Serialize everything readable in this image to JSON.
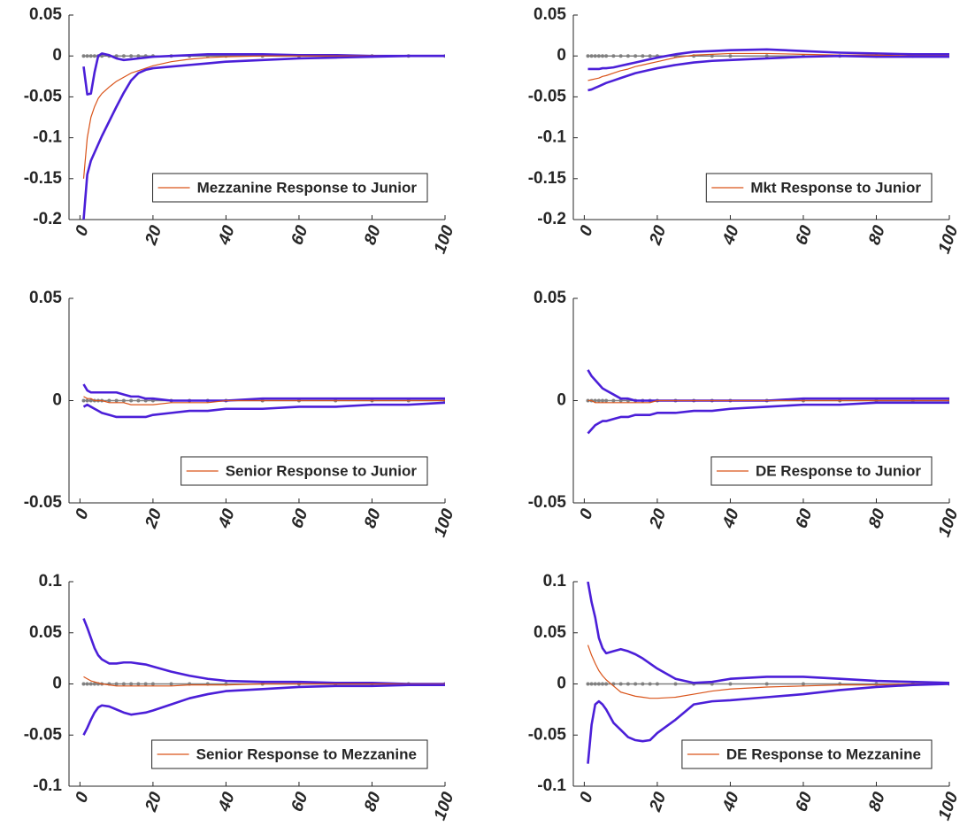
{
  "chart_data": [
    {
      "type": "line",
      "xlim": [
        -3,
        100
      ],
      "xticks": [
        0,
        20,
        40,
        60,
        80,
        100
      ],
      "ylim": [
        -0.2,
        0.05
      ],
      "yticks": [
        -0.2,
        -0.15,
        -0.1,
        -0.05,
        0,
        0.05
      ],
      "legend": "lower right",
      "x": [
        1,
        2,
        3,
        4,
        5,
        6,
        8,
        10,
        12,
        14,
        16,
        18,
        20,
        25,
        30,
        35,
        40,
        50,
        60,
        70,
        80,
        90,
        100
      ],
      "series": [
        {
          "color": "#808080",
          "marker": "dot",
          "values": [
            0,
            0,
            0,
            0,
            0,
            0,
            0,
            0,
            0,
            0,
            0,
            0,
            0,
            0,
            0,
            0,
            0,
            0,
            0,
            0,
            0,
            0,
            0
          ]
        },
        {
          "color": "#4b1fd8",
          "values": [
            -0.013,
            -0.047,
            -0.046,
            -0.02,
            0,
            0.003,
            0.001,
            -0.003,
            -0.005,
            -0.004,
            -0.003,
            -0.002,
            -0.001,
            0,
            0.001,
            0.002,
            0.002,
            0.002,
            0.001,
            0.001,
            0,
            0,
            0
          ]
        },
        {
          "name": "Mezzanine Response to Junior",
          "color": "#d95319",
          "values": [
            -0.15,
            -0.1,
            -0.075,
            -0.062,
            -0.052,
            -0.046,
            -0.038,
            -0.031,
            -0.026,
            -0.021,
            -0.018,
            -0.015,
            -0.012,
            -0.007,
            -0.004,
            -0.002,
            -0.001,
            0,
            0,
            0,
            0,
            0,
            0
          ]
        },
        {
          "color": "#4b1fd8",
          "values": [
            -0.2,
            -0.145,
            -0.128,
            -0.118,
            -0.108,
            -0.098,
            -0.08,
            -0.062,
            -0.045,
            -0.03,
            -0.021,
            -0.017,
            -0.015,
            -0.013,
            -0.011,
            -0.009,
            -0.007,
            -0.005,
            -0.003,
            -0.002,
            -0.001,
            0,
            0
          ]
        }
      ]
    },
    {
      "type": "line",
      "xlim": [
        -3,
        100
      ],
      "xticks": [
        0,
        20,
        40,
        60,
        80,
        100
      ],
      "ylim": [
        -0.2,
        0.05
      ],
      "yticks": [
        -0.2,
        -0.15,
        -0.1,
        -0.05,
        0,
        0.05
      ],
      "legend": "lower right",
      "x": [
        1,
        2,
        3,
        4,
        5,
        6,
        8,
        10,
        12,
        14,
        16,
        18,
        20,
        25,
        30,
        35,
        40,
        50,
        60,
        70,
        80,
        90,
        100
      ],
      "series": [
        {
          "color": "#808080",
          "marker": "dot",
          "values": [
            0,
            0,
            0,
            0,
            0,
            0,
            0,
            0,
            0,
            0,
            0,
            0,
            0,
            0,
            0,
            0,
            0,
            0,
            0,
            0,
            0,
            0,
            0
          ]
        },
        {
          "color": "#4b1fd8",
          "values": [
            -0.016,
            -0.016,
            -0.016,
            -0.016,
            -0.015,
            -0.015,
            -0.014,
            -0.012,
            -0.01,
            -0.008,
            -0.006,
            -0.004,
            -0.002,
            0.002,
            0.005,
            0.006,
            0.007,
            0.008,
            0.006,
            0.004,
            0.003,
            0.002,
            0.002
          ]
        },
        {
          "name": "Mkt Response to Junior",
          "color": "#d95319",
          "values": [
            -0.03,
            -0.029,
            -0.028,
            -0.027,
            -0.025,
            -0.024,
            -0.021,
            -0.018,
            -0.016,
            -0.013,
            -0.011,
            -0.009,
            -0.007,
            -0.002,
            0.001,
            0.002,
            0.003,
            0.003,
            0.002,
            0.001,
            0.001,
            0,
            0
          ]
        },
        {
          "color": "#4b1fd8",
          "values": [
            -0.042,
            -0.041,
            -0.039,
            -0.037,
            -0.035,
            -0.033,
            -0.03,
            -0.027,
            -0.024,
            -0.021,
            -0.019,
            -0.017,
            -0.015,
            -0.011,
            -0.008,
            -0.006,
            -0.005,
            -0.003,
            -0.001,
            0,
            -0.001,
            -0.001,
            -0.001
          ]
        }
      ]
    },
    {
      "type": "line",
      "xlim": [
        -3,
        100
      ],
      "xticks": [
        0,
        20,
        40,
        60,
        80,
        100
      ],
      "ylim": [
        -0.05,
        0.05
      ],
      "yticks": [
        -0.05,
        0,
        0.05
      ],
      "legend": "lower right",
      "x": [
        1,
        2,
        3,
        4,
        5,
        6,
        8,
        10,
        12,
        14,
        16,
        18,
        20,
        25,
        30,
        35,
        40,
        50,
        60,
        70,
        80,
        90,
        100
      ],
      "series": [
        {
          "color": "#808080",
          "marker": "dot",
          "values": [
            0,
            0,
            0,
            0,
            0,
            0,
            0,
            0,
            0,
            0,
            0,
            0,
            0,
            0,
            0,
            0,
            0,
            0,
            0,
            0,
            0,
            0,
            0
          ]
        },
        {
          "color": "#4b1fd8",
          "values": [
            0.008,
            0.005,
            0.004,
            0.004,
            0.004,
            0.004,
            0.004,
            0.004,
            0.003,
            0.002,
            0.002,
            0.001,
            0.001,
            0,
            0,
            0,
            0,
            0.001,
            0.001,
            0.001,
            0.001,
            0.001,
            0.001
          ]
        },
        {
          "name": "Senior Response to Junior",
          "color": "#d95319",
          "values": [
            0.002,
            0.001,
            0.001,
            0,
            0,
            0,
            -0.001,
            -0.001,
            -0.001,
            -0.002,
            -0.002,
            -0.002,
            -0.002,
            -0.001,
            -0.001,
            -0.001,
            0,
            0,
            0,
            0,
            0,
            0,
            0
          ]
        },
        {
          "color": "#4b1fd8",
          "values": [
            -0.003,
            -0.002,
            -0.003,
            -0.004,
            -0.005,
            -0.006,
            -0.007,
            -0.008,
            -0.008,
            -0.008,
            -0.008,
            -0.008,
            -0.007,
            -0.006,
            -0.005,
            -0.005,
            -0.004,
            -0.004,
            -0.003,
            -0.003,
            -0.002,
            -0.002,
            -0.001
          ]
        }
      ]
    },
    {
      "type": "line",
      "xlim": [
        -3,
        100
      ],
      "xticks": [
        0,
        20,
        40,
        60,
        80,
        100
      ],
      "ylim": [
        -0.05,
        0.05
      ],
      "yticks": [
        -0.05,
        0,
        0.05
      ],
      "legend": "lower right",
      "x": [
        1,
        2,
        3,
        4,
        5,
        6,
        8,
        10,
        12,
        14,
        16,
        18,
        20,
        25,
        30,
        35,
        40,
        50,
        60,
        70,
        80,
        90,
        100
      ],
      "series": [
        {
          "color": "#808080",
          "marker": "dot",
          "values": [
            0,
            0,
            0,
            0,
            0,
            0,
            0,
            0,
            0,
            0,
            0,
            0,
            0,
            0,
            0,
            0,
            0,
            0,
            0,
            0,
            0,
            0,
            0
          ]
        },
        {
          "color": "#4b1fd8",
          "values": [
            0.015,
            0.012,
            0.01,
            0.008,
            0.006,
            0.005,
            0.003,
            0.001,
            0.001,
            0,
            0,
            0,
            0,
            0,
            0,
            0,
            0,
            0,
            0.001,
            0.001,
            0.001,
            0.001,
            0.001
          ]
        },
        {
          "name": "DE Response to Junior",
          "color": "#d95319",
          "values": [
            0,
            0,
            -0.001,
            -0.001,
            -0.001,
            -0.001,
            -0.001,
            -0.001,
            -0.001,
            -0.001,
            -0.001,
            -0.001,
            0,
            0,
            0,
            0,
            0,
            0,
            0,
            0,
            0,
            0,
            0
          ]
        },
        {
          "color": "#4b1fd8",
          "values": [
            -0.016,
            -0.014,
            -0.012,
            -0.011,
            -0.01,
            -0.01,
            -0.009,
            -0.008,
            -0.008,
            -0.007,
            -0.007,
            -0.007,
            -0.006,
            -0.006,
            -0.005,
            -0.005,
            -0.004,
            -0.003,
            -0.002,
            -0.002,
            -0.001,
            -0.001,
            -0.001
          ]
        }
      ]
    },
    {
      "type": "line",
      "xlim": [
        -3,
        100
      ],
      "xticks": [
        0,
        20,
        40,
        60,
        80,
        100
      ],
      "ylim": [
        -0.1,
        0.1
      ],
      "yticks": [
        -0.1,
        -0.05,
        0,
        0.05,
        0.1
      ],
      "legend": "lower right",
      "x": [
        1,
        2,
        3,
        4,
        5,
        6,
        8,
        10,
        12,
        14,
        16,
        18,
        20,
        25,
        30,
        35,
        40,
        50,
        60,
        70,
        80,
        90,
        100
      ],
      "series": [
        {
          "color": "#808080",
          "marker": "dot",
          "values": [
            0,
            0,
            0,
            0,
            0,
            0,
            0,
            0,
            0,
            0,
            0,
            0,
            0,
            0,
            0,
            0,
            0,
            0,
            0,
            0,
            0,
            0,
            0
          ]
        },
        {
          "color": "#4b1fd8",
          "values": [
            0.064,
            0.055,
            0.045,
            0.035,
            0.028,
            0.024,
            0.02,
            0.02,
            0.021,
            0.021,
            0.02,
            0.019,
            0.017,
            0.012,
            0.008,
            0.005,
            0.003,
            0.002,
            0.002,
            0.001,
            0.001,
            0,
            0
          ]
        },
        {
          "name": "Senior Response to Mezzanine",
          "color": "#d95319",
          "values": [
            0.007,
            0.005,
            0.003,
            0.002,
            0.001,
            0,
            -0.001,
            -0.002,
            -0.002,
            -0.002,
            -0.002,
            -0.002,
            -0.002,
            -0.002,
            -0.001,
            -0.001,
            -0.001,
            0,
            0,
            0,
            0,
            0,
            0
          ]
        },
        {
          "color": "#4b1fd8",
          "values": [
            -0.05,
            -0.043,
            -0.035,
            -0.028,
            -0.023,
            -0.021,
            -0.022,
            -0.025,
            -0.028,
            -0.03,
            -0.029,
            -0.028,
            -0.026,
            -0.02,
            -0.014,
            -0.01,
            -0.007,
            -0.005,
            -0.003,
            -0.002,
            -0.002,
            -0.001,
            -0.001
          ]
        }
      ]
    },
    {
      "type": "line",
      "xlim": [
        -3,
        100
      ],
      "xticks": [
        0,
        20,
        40,
        60,
        80,
        100
      ],
      "ylim": [
        -0.1,
        0.1
      ],
      "yticks": [
        -0.1,
        -0.05,
        0,
        0.05,
        0.1
      ],
      "legend": "lower right",
      "x": [
        1,
        2,
        3,
        4,
        5,
        6,
        8,
        10,
        12,
        14,
        16,
        18,
        20,
        25,
        30,
        35,
        40,
        50,
        60,
        70,
        80,
        90,
        100
      ],
      "series": [
        {
          "color": "#808080",
          "marker": "dot",
          "values": [
            0,
            0,
            0,
            0,
            0,
            0,
            0,
            0,
            0,
            0,
            0,
            0,
            0,
            0,
            0,
            0,
            0,
            0,
            0,
            0,
            0,
            0,
            0
          ]
        },
        {
          "color": "#4b1fd8",
          "values": [
            0.1,
            0.08,
            0.065,
            0.045,
            0.035,
            0.03,
            0.032,
            0.034,
            0.032,
            0.029,
            0.025,
            0.02,
            0.015,
            0.005,
            0.001,
            0.002,
            0.005,
            0.007,
            0.007,
            0.005,
            0.003,
            0.002,
            0.001
          ]
        },
        {
          "name": "DE Response to Mezzanine",
          "color": "#d95319",
          "values": [
            0.038,
            0.028,
            0.02,
            0.013,
            0.008,
            0.004,
            -0.002,
            -0.008,
            -0.01,
            -0.012,
            -0.013,
            -0.014,
            -0.014,
            -0.013,
            -0.01,
            -0.007,
            -0.005,
            -0.003,
            -0.002,
            -0.001,
            -0.001,
            0,
            0
          ]
        },
        {
          "color": "#4b1fd8",
          "values": [
            -0.078,
            -0.04,
            -0.02,
            -0.017,
            -0.02,
            -0.025,
            -0.038,
            -0.045,
            -0.052,
            -0.055,
            -0.056,
            -0.055,
            -0.048,
            -0.035,
            -0.02,
            -0.017,
            -0.016,
            -0.013,
            -0.01,
            -0.006,
            -0.003,
            -0.001,
            0
          ]
        }
      ]
    }
  ]
}
